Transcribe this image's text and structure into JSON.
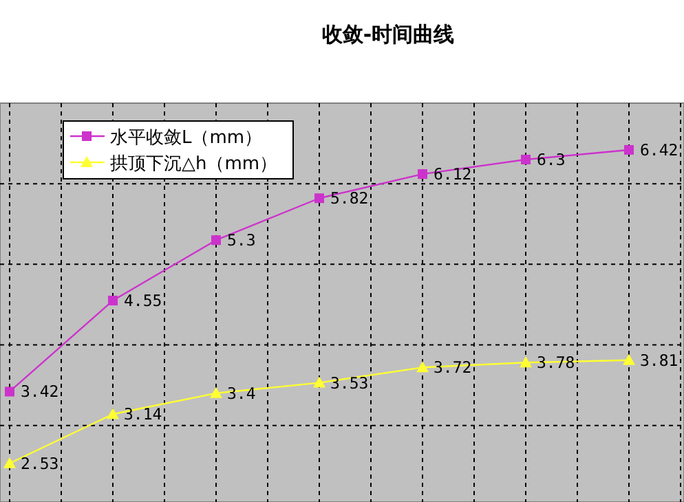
{
  "chart_data": {
    "type": "line",
    "title": "收敛-时间曲线",
    "categories": [
      null,
      null,
      null,
      null,
      null,
      null,
      null
    ],
    "series": [
      {
        "name": "水平收敛L（mm）",
        "color": "#cc33cc",
        "marker": "square",
        "values": [
          3.42,
          4.55,
          5.3,
          5.82,
          6.12,
          6.3,
          6.42
        ]
      },
      {
        "name": "拱顶下沉△h（mm）",
        "color": "#ffff33",
        "marker": "triangle",
        "values": [
          2.53,
          3.14,
          3.4,
          3.53,
          3.72,
          3.78,
          3.81
        ]
      }
    ],
    "ylim": [
      2.05,
      7
    ],
    "yticks": [
      {
        "value": 3,
        "label": null
      },
      {
        "value": 4,
        "label": null
      },
      {
        "value": 5,
        "label": null
      },
      {
        "value": 6,
        "label": null
      }
    ],
    "grid": true,
    "legend": "top left",
    "data_labels": true
  }
}
